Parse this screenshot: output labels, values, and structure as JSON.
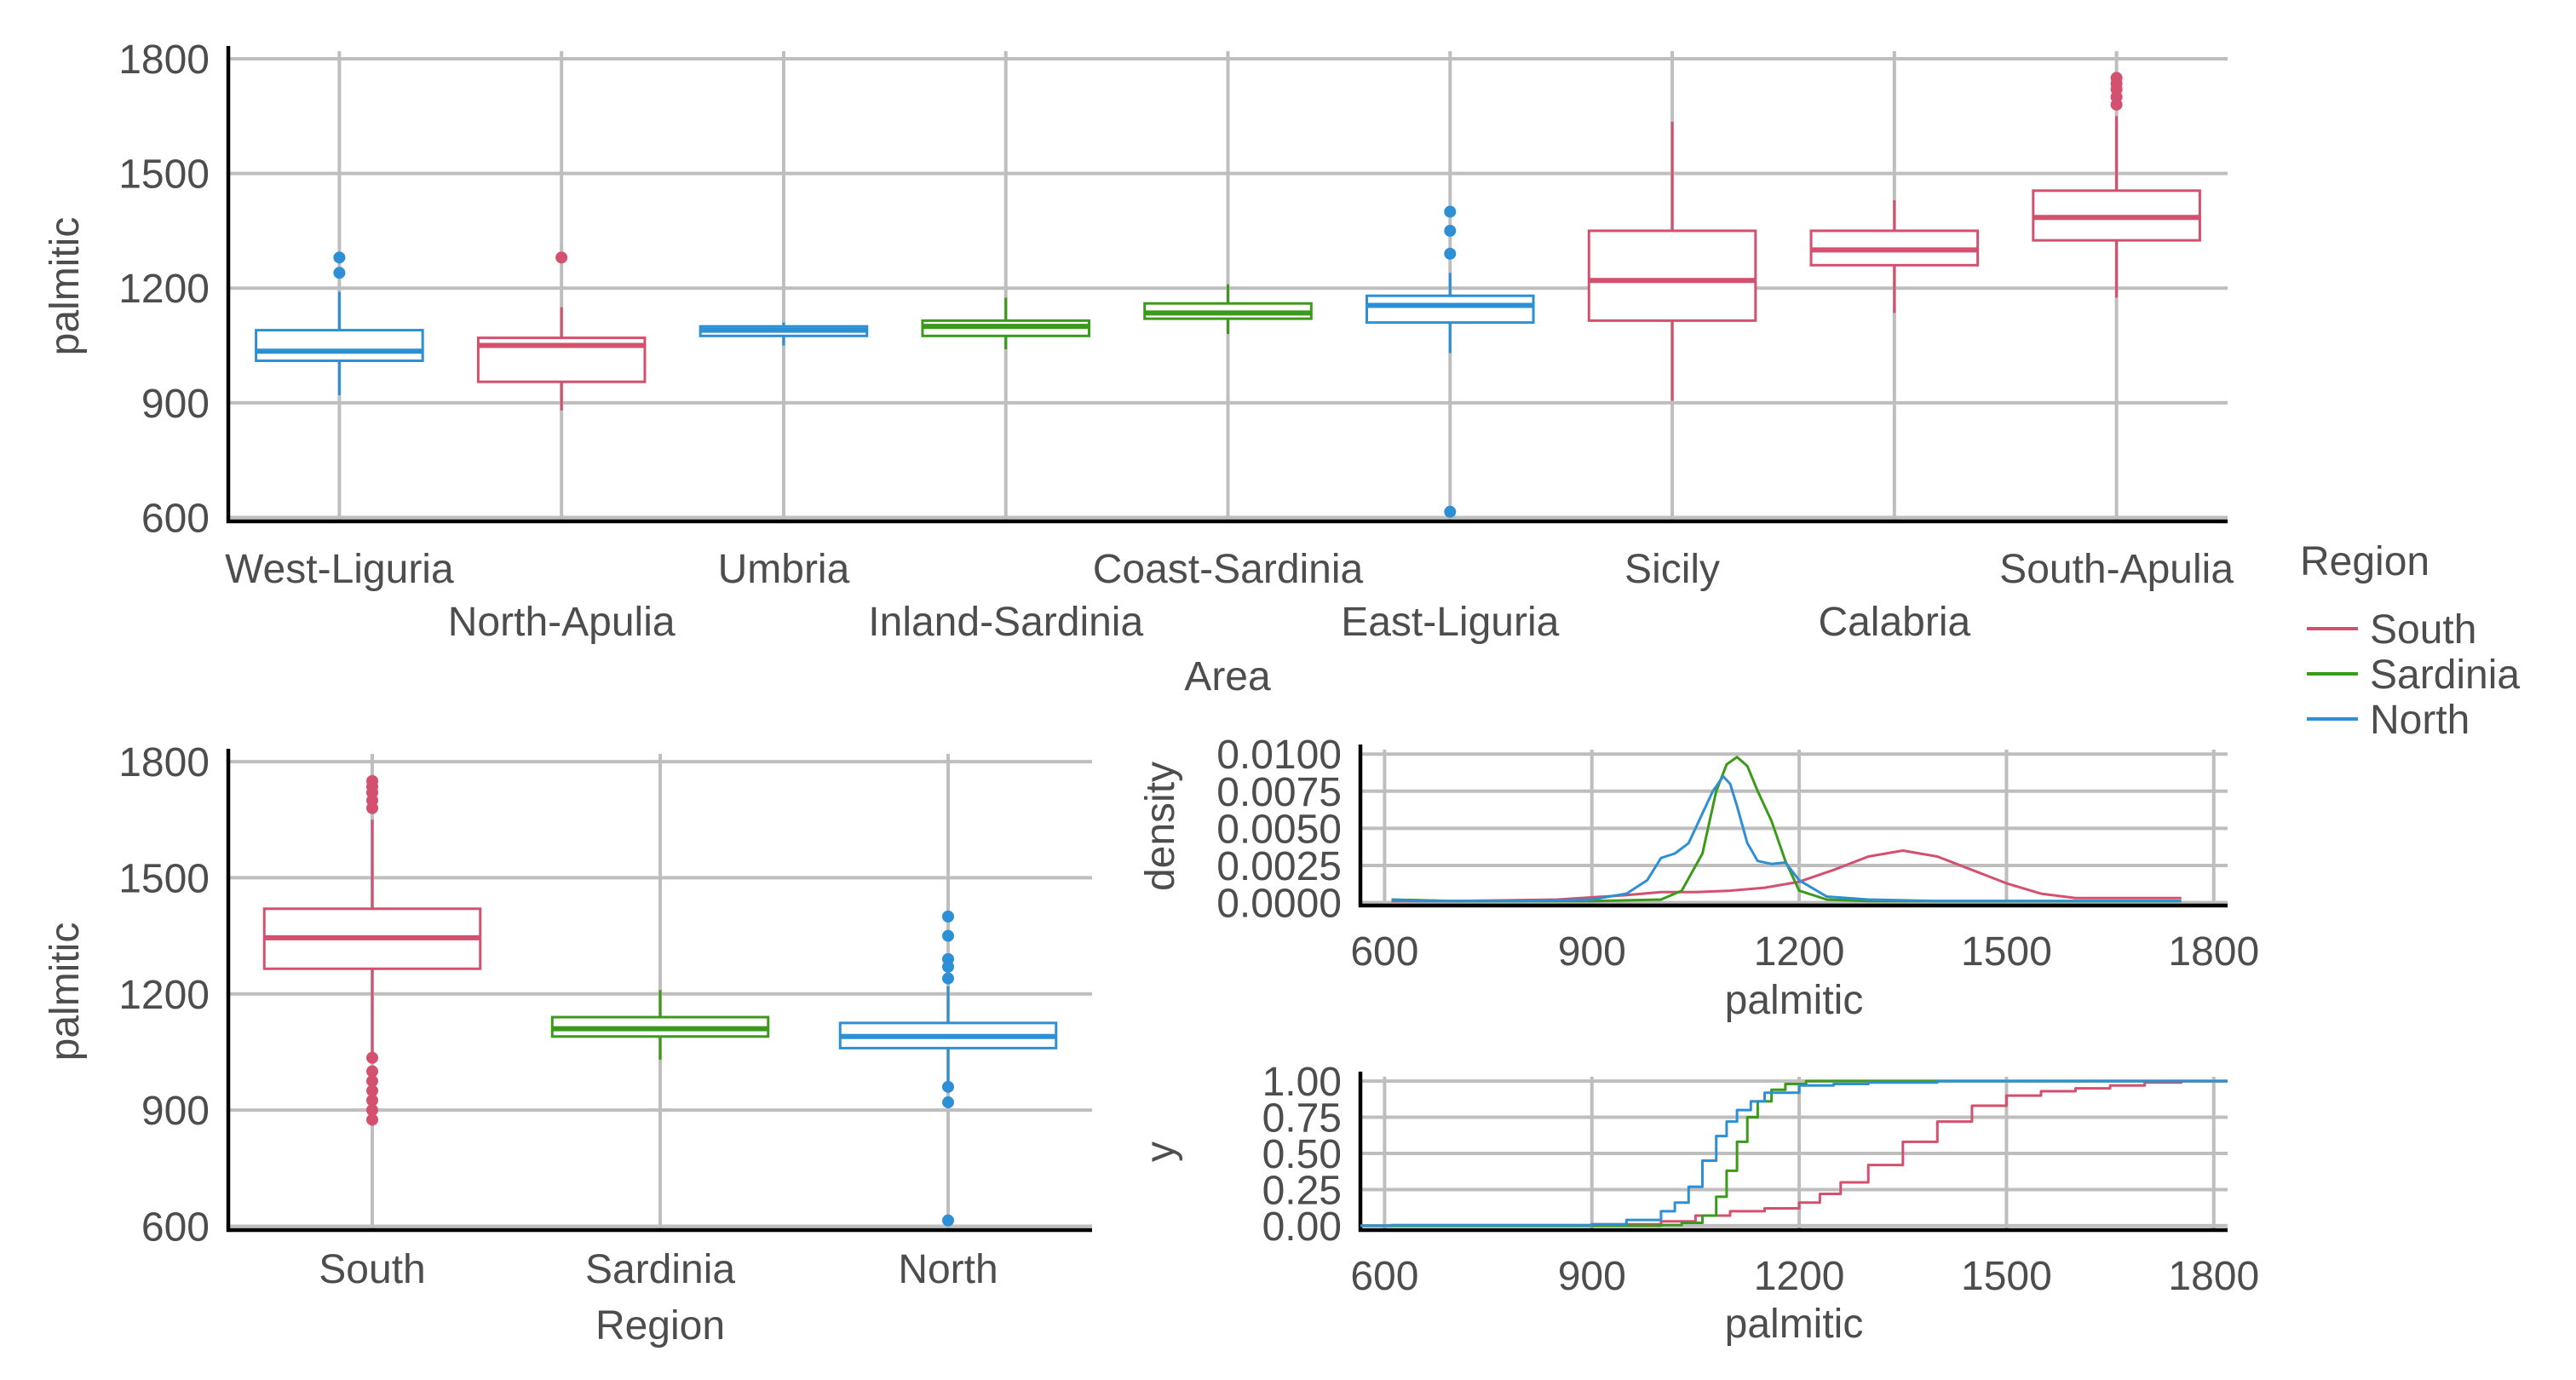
{
  "colors": {
    "South": "#d4506f",
    "Sardinia": "#3c9a1b",
    "North": "#2d8fd4"
  },
  "legend": {
    "title": "Region",
    "items": [
      "South",
      "Sardinia",
      "North"
    ]
  },
  "chart_data": [
    {
      "type": "box",
      "xlabel": "Area",
      "ylabel": "palmitic",
      "ylim": [
        590,
        1820
      ],
      "yticks": [
        600,
        900,
        1200,
        1500,
        1800
      ],
      "grid": true,
      "boxes": [
        {
          "category": "West-Liguria",
          "region": "North",
          "min": 920,
          "q1": 1010,
          "median": 1035,
          "q3": 1090,
          "max": 1190,
          "outliers": [
            1240,
            1280
          ]
        },
        {
          "category": "North-Apulia",
          "region": "South",
          "min": 880,
          "q1": 955,
          "median": 1050,
          "q3": 1070,
          "max": 1150,
          "outliers": [
            1280
          ]
        },
        {
          "category": "Umbria",
          "region": "North",
          "min": 1050,
          "q1": 1075,
          "median": 1090,
          "q3": 1100,
          "max": 1110,
          "outliers": []
        },
        {
          "category": "Inland-Sardinia",
          "region": "Sardinia",
          "min": 1040,
          "q1": 1075,
          "median": 1100,
          "q3": 1115,
          "max": 1175,
          "outliers": []
        },
        {
          "category": "Coast-Sardinia",
          "region": "Sardinia",
          "min": 1080,
          "q1": 1120,
          "median": 1135,
          "q3": 1160,
          "max": 1210,
          "outliers": []
        },
        {
          "category": "East-Liguria",
          "region": "North",
          "min": 1030,
          "q1": 1110,
          "median": 1155,
          "q3": 1180,
          "max": 1240,
          "outliers": [
            615,
            1290,
            1350,
            1400
          ]
        },
        {
          "category": "Sicily",
          "region": "South",
          "min": 905,
          "q1": 1115,
          "median": 1220,
          "q3": 1350,
          "max": 1635,
          "outliers": []
        },
        {
          "category": "Calabria",
          "region": "South",
          "min": 1135,
          "q1": 1260,
          "median": 1300,
          "q3": 1350,
          "max": 1430,
          "outliers": []
        },
        {
          "category": "South-Apulia",
          "region": "South",
          "min": 1175,
          "q1": 1325,
          "median": 1385,
          "q3": 1455,
          "max": 1650,
          "outliers": [
            1680,
            1700,
            1720,
            1735,
            1750
          ]
        }
      ]
    },
    {
      "type": "box",
      "xlabel": "Region",
      "ylabel": "palmitic",
      "ylim": [
        590,
        1820
      ],
      "yticks": [
        600,
        900,
        1200,
        1500,
        1800
      ],
      "grid": true,
      "boxes": [
        {
          "category": "South",
          "region": "South",
          "min": 1050,
          "q1": 1265,
          "median": 1345,
          "q3": 1420,
          "max": 1650,
          "outliers": [
            875,
            900,
            925,
            950,
            975,
            1000,
            1035,
            1680,
            1700,
            1720,
            1735,
            1750
          ]
        },
        {
          "category": "Sardinia",
          "region": "Sardinia",
          "min": 1030,
          "q1": 1090,
          "median": 1110,
          "q3": 1140,
          "max": 1210,
          "outliers": []
        },
        {
          "category": "North",
          "region": "North",
          "min": 975,
          "q1": 1060,
          "median": 1090,
          "q3": 1125,
          "max": 1220,
          "outliers": [
            615,
            920,
            960,
            1240,
            1270,
            1290,
            1350,
            1400
          ]
        }
      ]
    },
    {
      "type": "line",
      "xlabel": "palmitic",
      "ylabel": "density",
      "xlim": [
        565,
        1820
      ],
      "ylim": [
        -0.0002,
        0.0103
      ],
      "xticks": [
        600,
        900,
        1200,
        1500,
        1800
      ],
      "yticks": [
        "0.0000",
        "0.0025",
        "0.0050",
        "0.0075",
        "0.0100"
      ],
      "grid": true,
      "series": [
        {
          "name": "South",
          "x": [
            610,
            700,
            850,
            950,
            1000,
            1050,
            1100,
            1150,
            1200,
            1250,
            1300,
            1350,
            1400,
            1450,
            1500,
            1550,
            1600,
            1650,
            1700,
            1753
          ],
          "y": [
            0.0001,
            0.0001,
            0.0002,
            0.0005,
            0.0007,
            0.0007,
            0.0008,
            0.001,
            0.0014,
            0.0022,
            0.0031,
            0.0035,
            0.0031,
            0.0022,
            0.0013,
            0.0006,
            0.0003,
            0.0003,
            0.0003,
            0.0003
          ]
        },
        {
          "name": "Sardinia",
          "x": [
            610,
            700,
            900,
            1000,
            1030,
            1060,
            1080,
            1095,
            1110,
            1125,
            1140,
            1160,
            1180,
            1200,
            1240,
            1300,
            1400,
            1753
          ],
          "y": [
            0.0002,
            0.0001,
            0.0001,
            0.0002,
            0.0008,
            0.0033,
            0.0075,
            0.0093,
            0.0098,
            0.0092,
            0.0075,
            0.0055,
            0.0028,
            0.0008,
            0.0002,
            0.0001,
            0.0001,
            0.0001
          ]
        },
        {
          "name": "North",
          "x": [
            610,
            650,
            700,
            800,
            900,
            950,
            980,
            1000,
            1020,
            1040,
            1060,
            1075,
            1090,
            1100,
            1110,
            1125,
            1140,
            1160,
            1180,
            1200,
            1240,
            1300,
            1400,
            1500,
            1753
          ],
          "y": [
            0.0002,
            0.0001,
            0.0001,
            0.0001,
            0.0002,
            0.0006,
            0.0015,
            0.003,
            0.0033,
            0.004,
            0.006,
            0.0075,
            0.0085,
            0.008,
            0.0065,
            0.004,
            0.0028,
            0.0026,
            0.0027,
            0.0015,
            0.0004,
            0.0002,
            0.0001,
            0.0001,
            0.0001
          ]
        }
      ]
    },
    {
      "type": "line",
      "xlabel": "palmitic",
      "ylabel": "y",
      "xlim": [
        565,
        1820
      ],
      "ylim": [
        -0.03,
        1.03
      ],
      "xticks": [
        600,
        900,
        1200,
        1500,
        1800
      ],
      "yticks": [
        "0.00",
        "0.25",
        "0.50",
        "0.75",
        "1.00"
      ],
      "grid": true,
      "series": [
        {
          "name": "South",
          "x": [
            565,
            610,
            900,
            1000,
            1050,
            1100,
            1150,
            1200,
            1230,
            1260,
            1300,
            1350,
            1400,
            1450,
            1500,
            1550,
            1600,
            1650,
            1700,
            1753,
            1820
          ],
          "y": [
            0,
            0.003,
            0.01,
            0.03,
            0.07,
            0.1,
            0.12,
            0.16,
            0.22,
            0.3,
            0.42,
            0.58,
            0.72,
            0.83,
            0.9,
            0.93,
            0.95,
            0.97,
            0.99,
            1.0,
            1.0
          ]
        },
        {
          "name": "Sardinia",
          "x": [
            565,
            900,
            1000,
            1030,
            1060,
            1080,
            1095,
            1110,
            1125,
            1140,
            1160,
            1180,
            1210,
            1820
          ],
          "y": [
            0,
            0,
            0.005,
            0.02,
            0.07,
            0.2,
            0.38,
            0.58,
            0.75,
            0.86,
            0.94,
            0.98,
            1.0,
            1.0
          ]
        },
        {
          "name": "North",
          "x": [
            565,
            610,
            900,
            950,
            1000,
            1020,
            1040,
            1060,
            1080,
            1095,
            1110,
            1130,
            1150,
            1200,
            1250,
            1300,
            1400,
            1820
          ],
          "y": [
            0,
            0.004,
            0.01,
            0.04,
            0.1,
            0.16,
            0.27,
            0.45,
            0.62,
            0.72,
            0.8,
            0.86,
            0.92,
            0.97,
            0.98,
            0.99,
            1.0,
            1.0
          ]
        }
      ]
    }
  ]
}
